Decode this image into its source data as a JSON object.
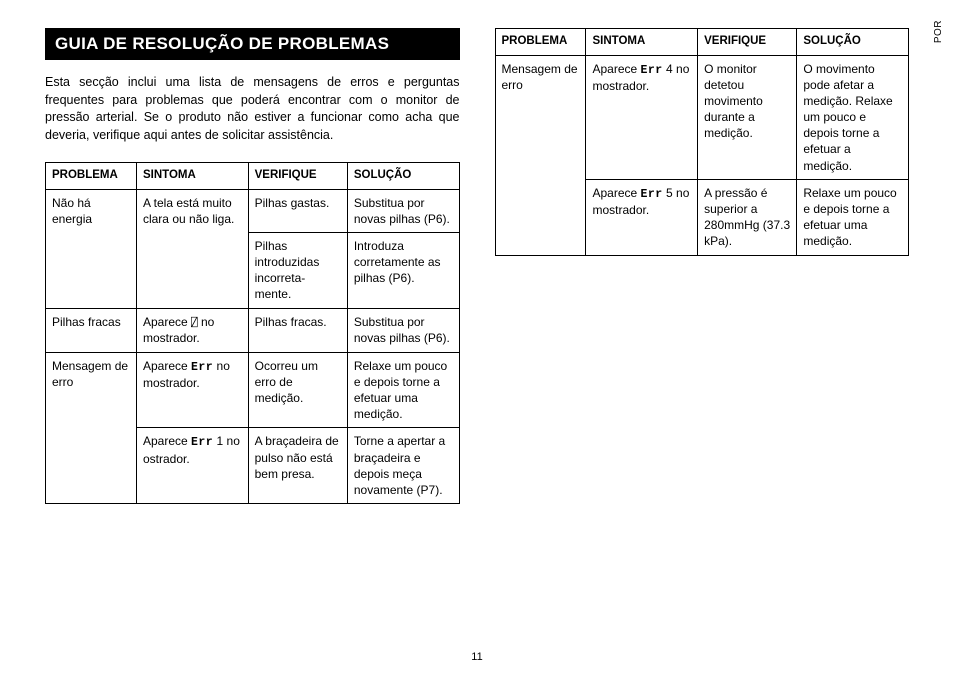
{
  "sideTab": "POR",
  "pageNumber": "11",
  "title": "GUIA DE RESOLUÇÃO DE PROBLEMAS",
  "intro": "Esta secção inclui uma lista de mensagens de erros e perguntas frequentes para problemas que poderá encontrar com o monitor de pressão arterial. Se o produto não estiver a funcionar como acha que deveria, verifique aqui antes de solicitar assistência.",
  "headers": {
    "problema": "PROBLEMA",
    "sintoma": "SINTOMA",
    "verifique": "VERIFIQUE",
    "solucao": "SOLUÇÃO"
  },
  "left": {
    "r1": {
      "p": "Não há energia",
      "s": "A tela está muito clara ou não liga.",
      "v": "Pilhas gastas.",
      "sol": "Substitua por novas pilhas (P6)."
    },
    "r2": {
      "v": "Pilhas introduzidas incorreta-mente.",
      "sol": "Introduza corretamente as pilhas (P6)."
    },
    "r3": {
      "p": "Pilhas fracas",
      "s_pre": "Aparece ",
      "s_icon": "⍁",
      "s_post": " no mostrador.",
      "v": "Pilhas fracas.",
      "sol": "Substitua por novas pilhas (P6)."
    },
    "r4": {
      "p": "Mensagem de erro",
      "s_pre": "Aparece ",
      "s_err": "Err",
      "s_post": " no mostrador.",
      "v": "Ocorreu um erro de medição.",
      "sol": "Relaxe um pouco e depois torne a efetuar uma medição."
    },
    "r5": {
      "s_pre": "Aparece ",
      "s_err": "Err",
      "s_post": " 1 no ostrador.",
      "v": "A braçadeira de pulso não está bem presa.",
      "sol": "Torne a apertar a braçadeira e depois meça novamente (P7)."
    }
  },
  "right": {
    "r1": {
      "p": "Mensagem de erro",
      "s_pre": "Aparece ",
      "s_err": "Err",
      "s_post": " 4 no mostrador.",
      "v": "O monitor detetou movimento durante a medição.",
      "sol": "O movimento pode afetar a medição. Relaxe um pouco e depois torne a efetuar a medição."
    },
    "r2": {
      "s_pre": "Aparece ",
      "s_err": "Err",
      "s_post": " 5 no mostrador.",
      "v": "A pressão é superior a 280mmHg (37.3 kPa).",
      "sol": "Relaxe um pouco e depois torne a efetuar uma medição."
    }
  }
}
